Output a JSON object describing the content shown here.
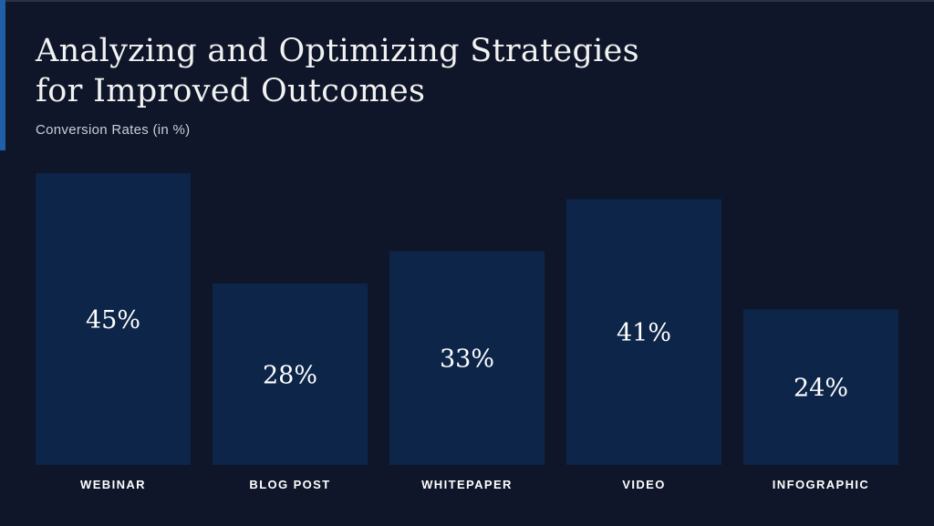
{
  "header": {
    "title_line1": "Analyzing and Optimizing Strategies",
    "title_line2": "for Improved Outcomes",
    "subtitle": "Conversion Rates (in %)"
  },
  "colors": {
    "background": "#0f1629",
    "bar": "#0c2548",
    "accent": "#1f5fa8"
  },
  "chart_data": {
    "type": "bar",
    "title": "Analyzing and Optimizing Strategies for Improved Outcomes",
    "subtitle": "Conversion Rates (in %)",
    "categories": [
      "WEBINAR",
      "BLOG POST",
      "WHITEPAPER",
      "VIDEO",
      "INFOGRAPHIC"
    ],
    "values": [
      45,
      28,
      33,
      41,
      24
    ],
    "data_labels": [
      "45%",
      "28%",
      "33%",
      "41%",
      "24%"
    ],
    "ylim": [
      0,
      45
    ],
    "grid": false,
    "legend": "none"
  }
}
